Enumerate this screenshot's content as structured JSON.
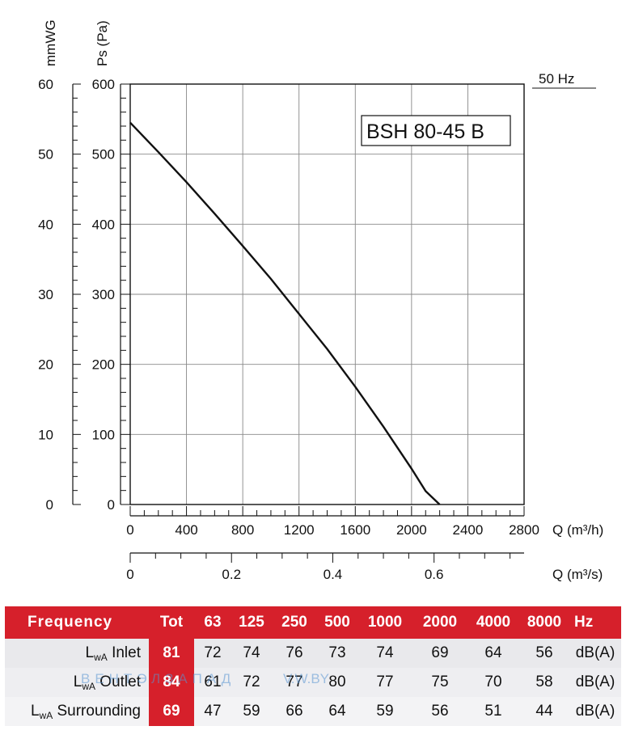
{
  "chart_data": {
    "type": "line",
    "model": "BSH 80-45 B",
    "frequency_label": "50 Hz",
    "y_left_label": "mmWG",
    "y_right_label": "Ps (Pa)",
    "x_label": "Q (m³/h)",
    "x2_label": "Q (m³/s)",
    "xlim": [
      0,
      2800
    ],
    "ylim": [
      0,
      600
    ],
    "x_ticks": [
      "0",
      "400",
      "800",
      "1200",
      "1600",
      "2000",
      "2400",
      "2800"
    ],
    "y_ticks": [
      "0",
      "100",
      "200",
      "300",
      "400",
      "500",
      "600"
    ],
    "mmwg_ticks": [
      "0",
      "10",
      "20",
      "30",
      "40",
      "50",
      "60"
    ],
    "x2_ticks": [
      "0",
      "0.2",
      "0.4",
      "0.6"
    ],
    "x2_values": [
      0,
      0.2,
      0.4,
      0.6
    ],
    "x2_max": 0.7778,
    "grid": true,
    "series": [
      {
        "x": [
          0,
          200,
          400,
          600,
          800,
          1000,
          1200,
          1400,
          1600,
          1800,
          2000,
          2100,
          2200
        ],
        "y": [
          545,
          503,
          460,
          415,
          369,
          322,
          272,
          222,
          168,
          111,
          51,
          19,
          0
        ]
      }
    ]
  },
  "table": {
    "header": [
      "Frequency",
      "Tot",
      "63",
      "125",
      "250",
      "500",
      "1000",
      "2000",
      "4000",
      "8000",
      "Hz"
    ],
    "rows": [
      {
        "label_main": "L",
        "label_sub": "wA",
        "label_rest": " Inlet",
        "tot": "81",
        "values": [
          "72",
          "74",
          "76",
          "73",
          "74",
          "69",
          "64",
          "56"
        ],
        "unit": "dB(A)"
      },
      {
        "label_main": "L",
        "label_sub": "wA",
        "label_rest": " Outlet",
        "tot": "84",
        "values": [
          "61",
          "72",
          "77",
          "80",
          "77",
          "75",
          "70",
          "58"
        ],
        "unit": "dB(A)"
      },
      {
        "label_main": "L",
        "label_sub": "wA",
        "label_rest": " Surrounding",
        "tot": "69",
        "values": [
          "47",
          "59",
          "66",
          "64",
          "59",
          "56",
          "51",
          "44"
        ],
        "unit": "dB(A)"
      }
    ]
  },
  "watermark": {
    "left": "ВЕНТЭЛЗАПАД",
    "right": "V.W.BY"
  },
  "colors": {
    "accent": "#d6202b",
    "curve": "#111111",
    "grid": "#999999"
  }
}
